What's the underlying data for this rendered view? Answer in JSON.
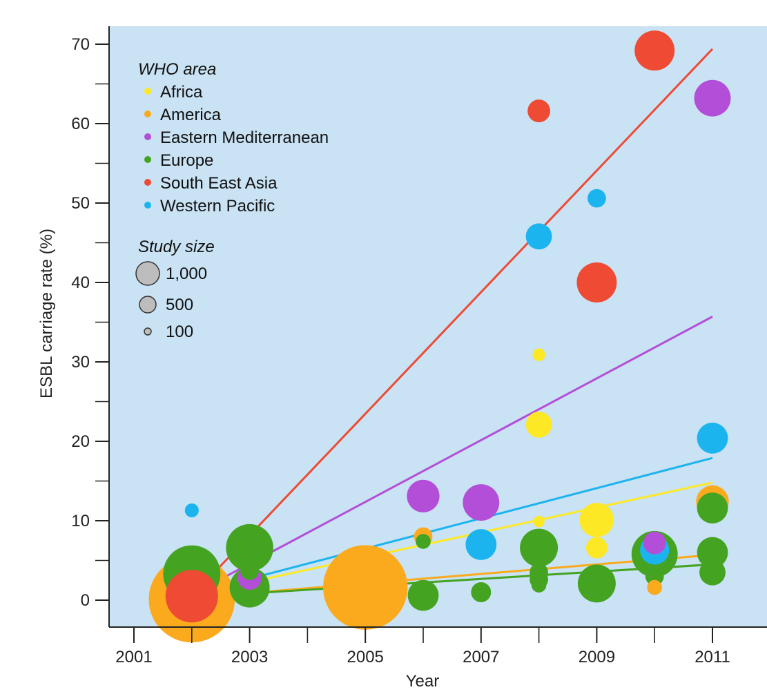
{
  "chart_data": {
    "type": "scatter",
    "xlabel": "Year",
    "ylabel": "ESBL carriage rate (%)",
    "xlim": [
      2001,
      2012
    ],
    "ylim": [
      -3.5,
      74
    ],
    "x_ticks": [
      2001,
      2003,
      2005,
      2007,
      2009,
      2011
    ],
    "x_minor_ticks": [
      2002,
      2004,
      2006,
      2008,
      2010
    ],
    "y_ticks": [
      0,
      10,
      20,
      30,
      40,
      50,
      60,
      70
    ],
    "y_minor_ticks": [
      5,
      15,
      25,
      35,
      45,
      55,
      65
    ],
    "grid": false,
    "legend_position": "top-left",
    "legend_title": "WHO area",
    "size_legend_title": "Study size",
    "size_legend": [
      {
        "label": "1,000",
        "value": 1000
      },
      {
        "label": "500",
        "value": 500
      },
      {
        "label": "100",
        "value": 100
      }
    ],
    "series": [
      {
        "name": "Africa",
        "color": "#fde826",
        "points": [
          {
            "x": 2008,
            "y": 30.9,
            "size": 20
          },
          {
            "x": 2008,
            "y": 22.1,
            "size": 110
          },
          {
            "x": 2008,
            "y": 9.9,
            "size": 15
          },
          {
            "x": 2009,
            "y": 10.1,
            "size": 200
          },
          {
            "x": 2009,
            "y": 6.6,
            "size": 70
          }
        ],
        "trend": {
          "x": [
            2002,
            2011
          ],
          "y": [
            0.7,
            14.8
          ]
        }
      },
      {
        "name": "America",
        "color": "#fbaa1d",
        "points": [
          {
            "x": 2002,
            "y": 0.1,
            "size": 1400
          },
          {
            "x": 2005,
            "y": 1.6,
            "size": 1350
          },
          {
            "x": 2006,
            "y": 8.0,
            "size": 50
          },
          {
            "x": 2010,
            "y": 1.6,
            "size": 30
          },
          {
            "x": 2011,
            "y": 12.4,
            "size": 180
          }
        ],
        "trend": {
          "x": [
            2002,
            2011
          ],
          "y": [
            0.3,
            5.7
          ]
        }
      },
      {
        "name": "Eastern Mediterranean",
        "color": "#b34ed9",
        "points": [
          {
            "x": 2003,
            "y": 2.8,
            "size": 90
          },
          {
            "x": 2006,
            "y": 13.1,
            "size": 180
          },
          {
            "x": 2007,
            "y": 12.3,
            "size": 230
          },
          {
            "x": 2010,
            "y": 7.2,
            "size": 80
          },
          {
            "x": 2011,
            "y": 63.2,
            "size": 230
          }
        ],
        "trend": {
          "x": [
            2002,
            2011
          ],
          "y": [
            0.7,
            35.7
          ]
        }
      },
      {
        "name": "Europe",
        "color": "#44a321",
        "points": [
          {
            "x": 2002,
            "y": 3.3,
            "size": 600
          },
          {
            "x": 2003,
            "y": 6.6,
            "size": 400
          },
          {
            "x": 2003,
            "y": 3.7,
            "size": 50
          },
          {
            "x": 2003,
            "y": 1.6,
            "size": 280
          },
          {
            "x": 2006,
            "y": 0.6,
            "size": 160
          },
          {
            "x": 2006,
            "y": 7.4,
            "size": 30
          },
          {
            "x": 2007,
            "y": 1.0,
            "size": 60
          },
          {
            "x": 2008,
            "y": 6.6,
            "size": 250
          },
          {
            "x": 2008,
            "y": 3.5,
            "size": 50
          },
          {
            "x": 2008,
            "y": 2.6,
            "size": 50
          },
          {
            "x": 2008,
            "y": 1.9,
            "size": 30
          },
          {
            "x": 2009,
            "y": 2.1,
            "size": 250
          },
          {
            "x": 2010,
            "y": 5.8,
            "size": 380
          },
          {
            "x": 2010,
            "y": 3.0,
            "size": 50
          },
          {
            "x": 2011,
            "y": 11.6,
            "size": 160
          },
          {
            "x": 2011,
            "y": 6.0,
            "size": 160
          },
          {
            "x": 2011,
            "y": 3.5,
            "size": 110
          }
        ],
        "trend": {
          "x": [
            2002,
            2011
          ],
          "y": [
            0.4,
            4.5
          ]
        }
      },
      {
        "name": "South East Asia",
        "color": "#ee4a34",
        "points": [
          {
            "x": 2002,
            "y": 0.5,
            "size": 500
          },
          {
            "x": 2008,
            "y": 61.6,
            "size": 80
          },
          {
            "x": 2009,
            "y": 40.0,
            "size": 280
          },
          {
            "x": 2010,
            "y": 69.2,
            "size": 280
          }
        ],
        "trend": {
          "x": [
            2002,
            2011
          ],
          "y": [
            0.5,
            69.4
          ]
        }
      },
      {
        "name": "Western Pacific",
        "color": "#1cb4ef",
        "points": [
          {
            "x": 2002,
            "y": 11.3,
            "size": 25
          },
          {
            "x": 2007,
            "y": 7.0,
            "size": 160
          },
          {
            "x": 2008,
            "y": 45.8,
            "size": 110
          },
          {
            "x": 2009,
            "y": 50.6,
            "size": 50
          },
          {
            "x": 2010,
            "y": 6.3,
            "size": 140
          },
          {
            "x": 2011,
            "y": 20.4,
            "size": 160
          }
        ],
        "trend": {
          "x": [
            2002,
            2011
          ],
          "y": [
            0.8,
            17.9
          ]
        }
      }
    ]
  },
  "colors": {
    "plot_background": "#c9e2f4",
    "page_background": "#ffffff",
    "axis": "#222222",
    "size_legend_fill": "#bdbdbd"
  }
}
